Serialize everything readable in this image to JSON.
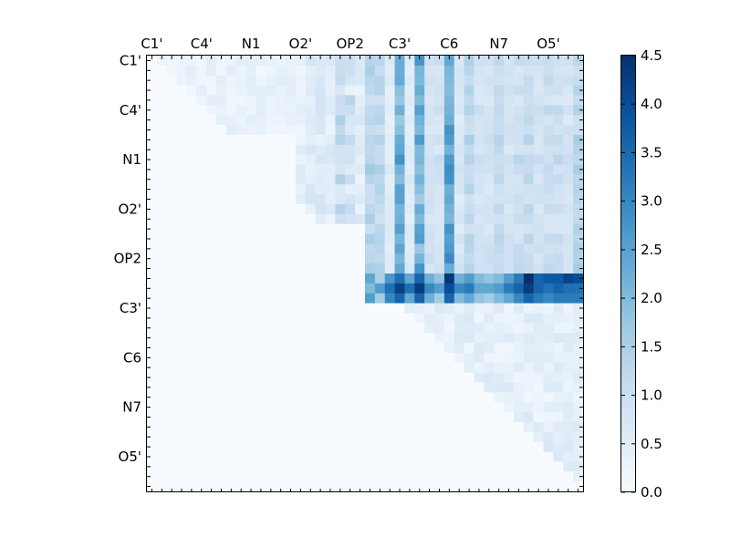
{
  "chart_data": {
    "type": "heatmap",
    "title": "",
    "xlabel": "",
    "ylabel": "",
    "matrix_size": 44,
    "x_tick_labels": [
      "C1'",
      "C4'",
      "N1",
      "O2'",
      "OP2",
      "C3'",
      "C6",
      "N7",
      "O5'"
    ],
    "y_tick_labels": [
      "C1'",
      "C4'",
      "N1",
      "O2'",
      "OP2",
      "C3'",
      "C6",
      "N7",
      "O5'"
    ],
    "label_tick_indices": [
      0,
      5,
      10,
      15,
      20,
      25,
      30,
      35,
      40
    ],
    "colorbar": {
      "colormap": "Blues",
      "range": [
        0.0,
        4.5
      ],
      "tick_labels": [
        "0.0",
        "0.5",
        "1.0",
        "1.5",
        "2.0",
        "2.5",
        "3.0",
        "3.5",
        "4.0",
        "4.5"
      ]
    },
    "highlight_rows": [
      {
        "row": 22,
        "values": [
          0,
          0,
          0,
          0,
          0,
          0,
          0,
          0,
          0,
          0,
          0,
          0,
          0,
          0,
          0,
          0,
          0,
          0,
          0,
          0,
          0,
          0,
          2.4,
          1.5,
          2.7,
          3.4,
          2.4,
          3.6,
          2.2,
          1.8,
          4.4,
          2.2,
          2.6,
          2.0,
          1.8,
          2.0,
          2.6,
          3.2,
          4.5,
          3.6,
          3.8,
          3.8,
          4.2,
          4.0
        ]
      },
      {
        "row": 23,
        "values": [
          0,
          0,
          0,
          0,
          0,
          0,
          0,
          0,
          0,
          0,
          0,
          0,
          0,
          0,
          0,
          0,
          0,
          0,
          0,
          0,
          0,
          0,
          2.0,
          2.6,
          3.4,
          4.2,
          3.4,
          4.3,
          3.0,
          2.6,
          4.0,
          3.0,
          3.2,
          2.4,
          2.4,
          2.6,
          3.2,
          3.6,
          4.3,
          3.6,
          3.4,
          3.6,
          3.4,
          3.4
        ]
      },
      {
        "row": 24,
        "values": [
          0,
          0,
          0,
          0,
          0,
          0,
          0,
          0,
          0,
          0,
          0,
          0,
          0,
          0,
          0,
          0,
          0,
          0,
          0,
          0,
          0,
          0,
          2.6,
          1.6,
          3.0,
          3.6,
          2.4,
          3.6,
          2.2,
          1.6,
          3.6,
          2.0,
          2.4,
          1.8,
          1.6,
          2.0,
          2.4,
          3.0,
          3.6,
          3.2,
          3.0,
          3.2,
          3.2,
          3.2
        ]
      }
    ]
  }
}
